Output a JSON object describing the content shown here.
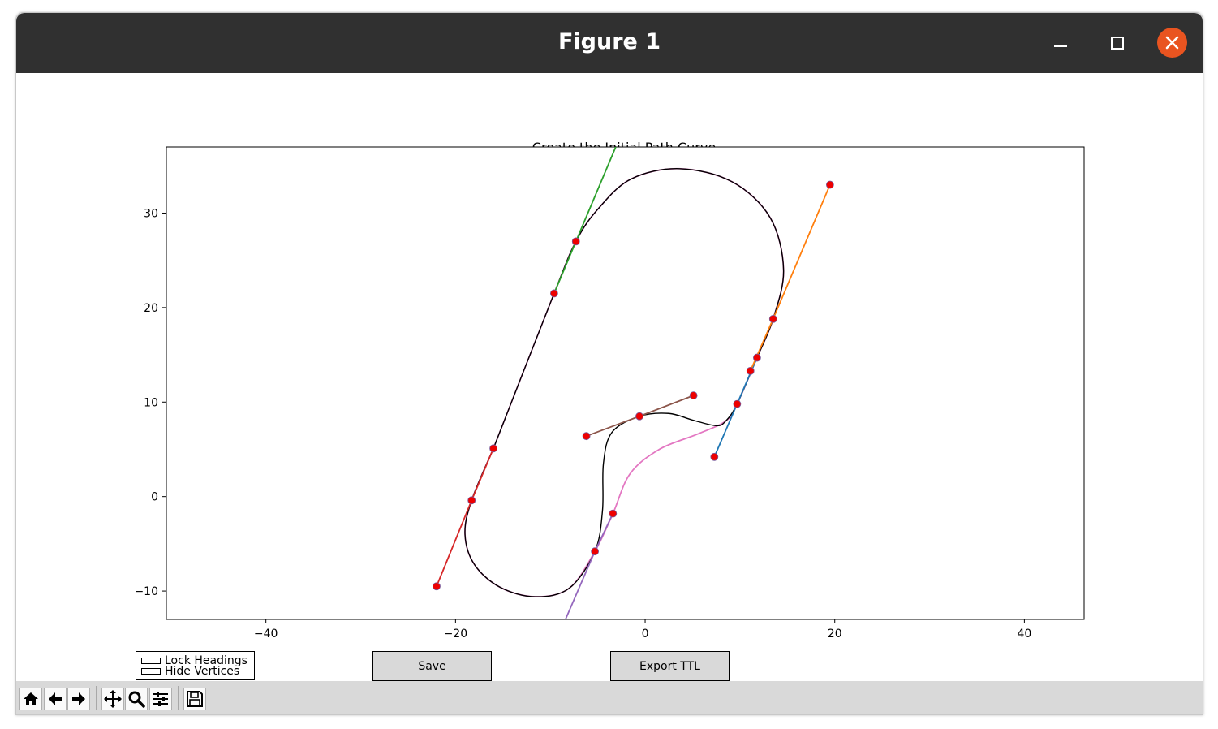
{
  "window": {
    "title": "Figure 1"
  },
  "figure": {
    "axes_title": "Create the Initial Path Curve"
  },
  "widgets": {
    "check_lock_headings": "Lock Headings",
    "check_hide_vertices": "Hide Vertices",
    "save_label": "Save",
    "export_label": "Export TTL"
  },
  "toolbar": {
    "icons": [
      "home-icon",
      "back-arrow-icon",
      "forward-arrow-icon",
      "pan-icon",
      "zoom-icon",
      "configure-subplots-icon",
      "save-figure-icon"
    ]
  },
  "chart_data": {
    "type": "line",
    "title": "Create the Initial Path Curve",
    "xlabel": "",
    "ylabel": "",
    "xlim": [
      -50.5,
      46.3
    ],
    "ylim": [
      -13,
      37
    ],
    "xticks": [
      -40,
      -20,
      0,
      20,
      40
    ],
    "yticks": [
      -10,
      0,
      10,
      20,
      30
    ],
    "grid": false,
    "colors": {
      "blue": "#1f77b4",
      "orange": "#ff7f0e",
      "green": "#2ca02c",
      "red": "#d62728",
      "purple": "#9467bd",
      "brown": "#8c564b",
      "pink": "#e377c2",
      "curve": "#000000",
      "vertex": "#ee0000"
    },
    "segments": [
      {
        "color": "blue",
        "points": [
          [
            7.3,
            4.2
          ],
          [
            9.7,
            9.8
          ],
          [
            11.8,
            14.7
          ]
        ]
      },
      {
        "color": "orange",
        "points": [
          [
            11.1,
            13.3
          ],
          [
            13.5,
            18.8
          ],
          [
            19.5,
            33.0
          ]
        ]
      },
      {
        "color": "green",
        "points": [
          [
            -9.6,
            21.5
          ],
          [
            -7.3,
            27.0
          ],
          [
            -3.1,
            37.0
          ]
        ]
      },
      {
        "color": "red",
        "points": [
          [
            -22.0,
            -9.5
          ],
          [
            -18.3,
            -0.4
          ],
          [
            -16.0,
            5.1
          ]
        ]
      },
      {
        "color": "purple",
        "points": [
          [
            -8.4,
            -13.0
          ],
          [
            -5.3,
            -5.8
          ],
          [
            -3.4,
            -1.8
          ]
        ]
      },
      {
        "color": "brown",
        "points": [
          [
            -6.2,
            6.4
          ],
          [
            -0.6,
            8.5
          ],
          [
            5.1,
            10.7
          ]
        ]
      }
    ],
    "vertices": [
      [
        7.3,
        4.2
      ],
      [
        9.7,
        9.8
      ],
      [
        11.8,
        14.7
      ],
      [
        11.1,
        13.3
      ],
      [
        13.5,
        18.8
      ],
      [
        19.5,
        33.0
      ],
      [
        -9.6,
        21.5
      ],
      [
        -7.3,
        27.0
      ],
      [
        -22.0,
        -9.5
      ],
      [
        -18.3,
        -0.4
      ],
      [
        -16.0,
        5.1
      ],
      [
        -5.3,
        -5.8
      ],
      [
        -3.4,
        -1.8
      ],
      [
        -6.2,
        6.4
      ],
      [
        -0.6,
        8.5
      ],
      [
        5.1,
        10.7
      ]
    ],
    "pink_curve": [
      [
        -16.0,
        5.1
      ],
      [
        -18.3,
        -0.4
      ],
      [
        -19.0,
        -4.0
      ],
      [
        -18.0,
        -7.2
      ],
      [
        -15.3,
        -9.6
      ],
      [
        -11.6,
        -10.6
      ],
      [
        -8.0,
        -9.7
      ],
      [
        -5.3,
        -5.8
      ],
      [
        -3.4,
        -1.8
      ],
      [
        -1.6,
        2.4
      ],
      [
        1.5,
        5.0
      ],
      [
        5.5,
        6.6
      ],
      [
        8.5,
        8.0
      ],
      [
        9.7,
        9.8
      ],
      [
        11.8,
        14.7
      ],
      [
        13.5,
        18.8
      ],
      [
        14.6,
        24.0
      ],
      [
        13.2,
        29.5
      ],
      [
        9.2,
        33.3
      ],
      [
        3.6,
        34.7
      ],
      [
        -1.5,
        33.6
      ],
      [
        -5.0,
        30.4
      ],
      [
        -7.3,
        27.0
      ],
      [
        -9.6,
        21.5
      ],
      [
        -16.0,
        5.1
      ]
    ],
    "black_curve": [
      [
        -16.0,
        5.1
      ],
      [
        -18.3,
        -0.4
      ],
      [
        -19.0,
        -4.0
      ],
      [
        -18.0,
        -7.2
      ],
      [
        -15.3,
        -9.6
      ],
      [
        -11.6,
        -10.6
      ],
      [
        -8.0,
        -9.7
      ],
      [
        -5.3,
        -5.8
      ],
      [
        -4.5,
        -1.5
      ],
      [
        -4.4,
        3.5
      ],
      [
        -3.5,
        6.8
      ],
      [
        -0.6,
        8.5
      ],
      [
        2.5,
        8.8
      ],
      [
        5.0,
        8.1
      ],
      [
        7.5,
        7.5
      ],
      [
        8.5,
        8.0
      ],
      [
        9.7,
        9.8
      ],
      [
        11.8,
        14.7
      ],
      [
        13.5,
        18.8
      ],
      [
        14.6,
        24.0
      ],
      [
        13.2,
        29.5
      ],
      [
        9.2,
        33.3
      ],
      [
        3.6,
        34.7
      ],
      [
        -1.5,
        33.6
      ],
      [
        -5.0,
        30.4
      ],
      [
        -7.3,
        27.0
      ],
      [
        -9.6,
        21.5
      ],
      [
        -16.0,
        5.1
      ]
    ]
  }
}
